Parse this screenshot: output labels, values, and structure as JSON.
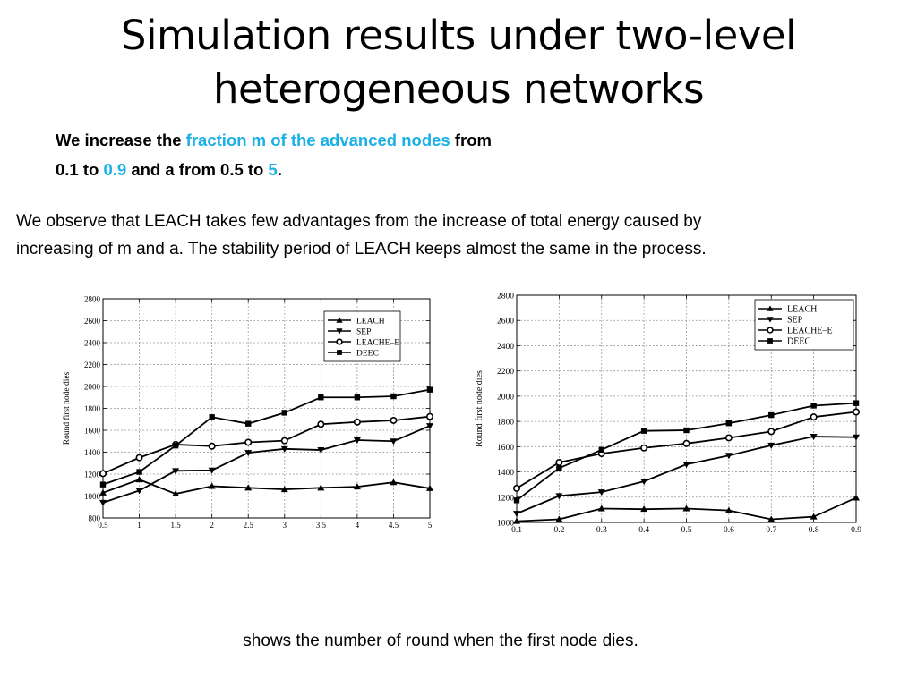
{
  "slide": {
    "title_line1": "Simulation results under two-level",
    "title_line2": "heterogeneous networks",
    "sub_line1_a": "We increase the ",
    "sub_line1_b": "fraction m of the advanced nodes",
    "sub_line1_c": " from",
    "sub_line2_a": "0.1 to ",
    "sub_line2_b": "0.9",
    "sub_line2_c": " and a from 0.5 to ",
    "sub_line2_d": "5",
    "sub_line2_e": ".",
    "observation_line1": "We observe that LEACH takes few advantages from the increase of total energy caused by",
    "observation_line2": "increasing of m and a. The stability period of LEACH keeps almost the same in the process.",
    "caption": "shows the number of round when the first node dies.",
    "highlight_color": "#1ab0e6"
  },
  "chart_data": [
    {
      "type": "line",
      "ylabel": "Round first node dies",
      "x": [
        0.5,
        1,
        1.5,
        2,
        2.5,
        3,
        3.5,
        4,
        4.5,
        5
      ],
      "xticks": [
        "0.5",
        "1",
        "1.5",
        "2",
        "2.5",
        "3",
        "3.5",
        "4",
        "4.5",
        "5"
      ],
      "xlim": [
        0.5,
        5
      ],
      "ylim": [
        800,
        2800
      ],
      "yticks": [
        "800",
        "1000",
        "1200",
        "1400",
        "1600",
        "1800",
        "2000",
        "2200",
        "2400",
        "2600",
        "2800"
      ],
      "legend_position": "top-right",
      "grid": true,
      "series": [
        {
          "name": "LEACH",
          "marker": "triangle-up",
          "values": [
            1030,
            1150,
            1020,
            1090,
            1075,
            1060,
            1075,
            1085,
            1125,
            1070
          ]
        },
        {
          "name": "SEP",
          "marker": "triangle-down",
          "values": [
            940,
            1050,
            1230,
            1235,
            1395,
            1430,
            1420,
            1510,
            1500,
            1640
          ]
        },
        {
          "name": "LEACHE–E",
          "marker": "circle",
          "values": [
            1205,
            1350,
            1470,
            1455,
            1490,
            1505,
            1655,
            1675,
            1690,
            1725
          ]
        },
        {
          "name": "DEEC",
          "marker": "square",
          "values": [
            1105,
            1220,
            1460,
            1720,
            1660,
            1760,
            1900,
            1900,
            1910,
            1970
          ]
        }
      ]
    },
    {
      "type": "line",
      "ylabel": "Round first node dies",
      "x": [
        0.1,
        0.2,
        0.3,
        0.4,
        0.5,
        0.6,
        0.7,
        0.8,
        0.9
      ],
      "xticks": [
        "0.1",
        "0.2",
        "0.3",
        "0.4",
        "0.5",
        "0.6",
        "0.7",
        "0.8",
        "0.9"
      ],
      "xlim": [
        0.1,
        0.9
      ],
      "ylim": [
        1000,
        2800
      ],
      "yticks": [
        "1000",
        "1200",
        "1400",
        "1600",
        "1800",
        "2000",
        "2200",
        "2400",
        "2600",
        "2800"
      ],
      "legend_position": "top-right",
      "grid": true,
      "series": [
        {
          "name": "LEACH",
          "marker": "triangle-up",
          "values": [
            1010,
            1025,
            1110,
            1105,
            1110,
            1095,
            1025,
            1045,
            1195
          ]
        },
        {
          "name": "SEP",
          "marker": "triangle-down",
          "values": [
            1070,
            1210,
            1240,
            1325,
            1460,
            1530,
            1610,
            1680,
            1675
          ]
        },
        {
          "name": "LEACHE–E",
          "marker": "circle",
          "values": [
            1270,
            1475,
            1545,
            1590,
            1625,
            1670,
            1720,
            1835,
            1875
          ]
        },
        {
          "name": "DEEC",
          "marker": "square",
          "values": [
            1175,
            1430,
            1575,
            1725,
            1730,
            1785,
            1850,
            1925,
            1945
          ]
        }
      ]
    }
  ]
}
